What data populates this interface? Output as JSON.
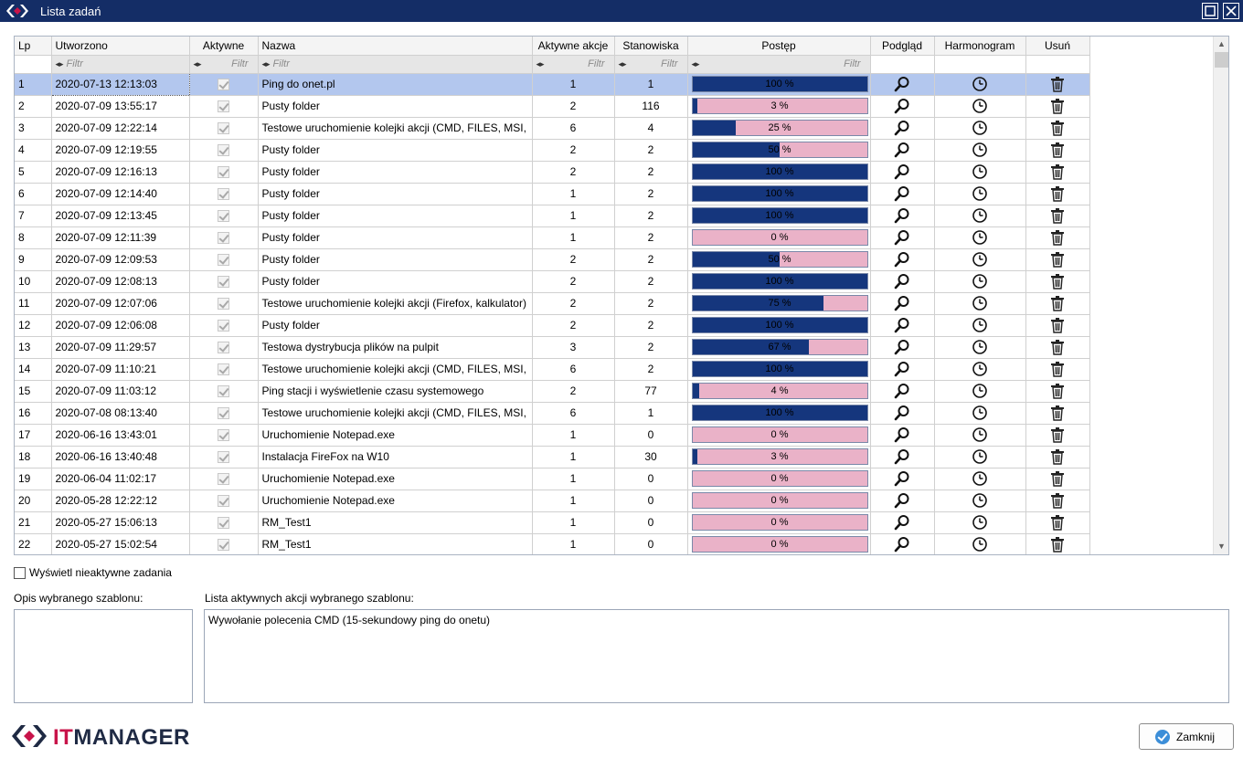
{
  "window": {
    "title": "Lista zadań"
  },
  "table": {
    "columns": {
      "lp": "Lp",
      "created": "Utworzono",
      "active": "Aktywne",
      "name": "Nazwa",
      "active_actions": "Aktywne akcje",
      "stations": "Stanowiska",
      "progress": "Postęp",
      "preview": "Podgląd",
      "schedule": "Harmonogram",
      "delete": "Usuń"
    },
    "filter_placeholder": "Filtr",
    "selected_row": 0,
    "rows": [
      {
        "lp": "1",
        "created": "2020-07-13 12:13:03",
        "active": true,
        "name": "Ping do onet.pl",
        "actions": "1",
        "stations": "1",
        "progress": 100,
        "progress_label": "100 %"
      },
      {
        "lp": "2",
        "created": "2020-07-09 13:55:17",
        "active": true,
        "name": "Pusty folder",
        "actions": "2",
        "stations": "116",
        "progress": 3,
        "progress_label": "3 %"
      },
      {
        "lp": "3",
        "created": "2020-07-09 12:22:14",
        "active": true,
        "name": "Testowe uruchomienie kolejki akcji (CMD, FILES, MSI,",
        "actions": "6",
        "stations": "4",
        "progress": 25,
        "progress_label": "25 %"
      },
      {
        "lp": "4",
        "created": "2020-07-09 12:19:55",
        "active": true,
        "name": "Pusty folder",
        "actions": "2",
        "stations": "2",
        "progress": 50,
        "progress_label": "50 %"
      },
      {
        "lp": "5",
        "created": "2020-07-09 12:16:13",
        "active": true,
        "name": "Pusty folder",
        "actions": "2",
        "stations": "2",
        "progress": 100,
        "progress_label": "100 %"
      },
      {
        "lp": "6",
        "created": "2020-07-09 12:14:40",
        "active": true,
        "name": "Pusty folder",
        "actions": "1",
        "stations": "2",
        "progress": 100,
        "progress_label": "100 %"
      },
      {
        "lp": "7",
        "created": "2020-07-09 12:13:45",
        "active": true,
        "name": "Pusty folder",
        "actions": "1",
        "stations": "2",
        "progress": 100,
        "progress_label": "100 %"
      },
      {
        "lp": "8",
        "created": "2020-07-09 12:11:39",
        "active": true,
        "name": "Pusty folder",
        "actions": "1",
        "stations": "2",
        "progress": 0,
        "progress_label": "0 %"
      },
      {
        "lp": "9",
        "created": "2020-07-09 12:09:53",
        "active": true,
        "name": "Pusty folder",
        "actions": "2",
        "stations": "2",
        "progress": 50,
        "progress_label": "50 %"
      },
      {
        "lp": "10",
        "created": "2020-07-09 12:08:13",
        "active": true,
        "name": "Pusty folder",
        "actions": "2",
        "stations": "2",
        "progress": 100,
        "progress_label": "100 %"
      },
      {
        "lp": "11",
        "created": "2020-07-09 12:07:06",
        "active": true,
        "name": "Testowe uruchomienie kolejki akcji (Firefox, kalkulator)",
        "actions": "2",
        "stations": "2",
        "progress": 75,
        "progress_label": "75 %"
      },
      {
        "lp": "12",
        "created": "2020-07-09 12:06:08",
        "active": true,
        "name": "Pusty folder",
        "actions": "2",
        "stations": "2",
        "progress": 100,
        "progress_label": "100 %"
      },
      {
        "lp": "13",
        "created": "2020-07-09 11:29:57",
        "active": true,
        "name": "Testowa dystrybucja plików na pulpit",
        "actions": "3",
        "stations": "2",
        "progress": 67,
        "progress_label": "67 %"
      },
      {
        "lp": "14",
        "created": "2020-07-09 11:10:21",
        "active": true,
        "name": "Testowe uruchomienie kolejki akcji (CMD, FILES, MSI,",
        "actions": "6",
        "stations": "2",
        "progress": 100,
        "progress_label": "100 %"
      },
      {
        "lp": "15",
        "created": "2020-07-09 11:03:12",
        "active": true,
        "name": "Ping stacji i wyświetlenie czasu systemowego",
        "actions": "2",
        "stations": "77",
        "progress": 4,
        "progress_label": "4 %"
      },
      {
        "lp": "16",
        "created": "2020-07-08 08:13:40",
        "active": true,
        "name": "Testowe uruchomienie kolejki akcji (CMD, FILES, MSI,",
        "actions": "6",
        "stations": "1",
        "progress": 100,
        "progress_label": "100 %"
      },
      {
        "lp": "17",
        "created": "2020-06-16 13:43:01",
        "active": true,
        "name": "Uruchomienie Notepad.exe",
        "actions": "1",
        "stations": "0",
        "progress": 0,
        "progress_label": "0 %"
      },
      {
        "lp": "18",
        "created": "2020-06-16 13:40:48",
        "active": true,
        "name": "Instalacja FireFox na W10",
        "actions": "1",
        "stations": "30",
        "progress": 3,
        "progress_label": "3 %"
      },
      {
        "lp": "19",
        "created": "2020-06-04 11:02:17",
        "active": true,
        "name": "Uruchomienie Notepad.exe",
        "actions": "1",
        "stations": "0",
        "progress": 0,
        "progress_label": "0 %"
      },
      {
        "lp": "20",
        "created": "2020-05-28 12:22:12",
        "active": true,
        "name": "Uruchomienie Notepad.exe",
        "actions": "1",
        "stations": "0",
        "progress": 0,
        "progress_label": "0 %"
      },
      {
        "lp": "21",
        "created": "2020-05-27 15:06:13",
        "active": true,
        "name": "RM_Test1",
        "actions": "1",
        "stations": "0",
        "progress": 0,
        "progress_label": "0 %"
      },
      {
        "lp": "22",
        "created": "2020-05-27 15:02:54",
        "active": true,
        "name": "RM_Test1",
        "actions": "1",
        "stations": "0",
        "progress": 0,
        "progress_label": "0 %"
      }
    ]
  },
  "show_inactive": {
    "label": "Wyświetl nieaktywne zadania",
    "checked": false
  },
  "description": {
    "label": "Opis wybranego szablonu:",
    "value": ""
  },
  "actions_list": {
    "label": "Lista aktywnych akcji wybranego szablonu:",
    "value": "Wywołanie polecenia CMD (15-sekundowy ping do onetu)"
  },
  "brand": {
    "name_part1": "IT",
    "name_part2": "MANAGER"
  },
  "close_button": {
    "label": "Zamknij"
  },
  "icons": {
    "preview": "magnifier-icon",
    "schedule": "clock-icon",
    "delete": "trash-icon"
  },
  "colors": {
    "titlebar": "#142d66",
    "progress_fill": "#15367d",
    "progress_bg": "#eab2c8",
    "selected_row": "#b3c7ee",
    "brand_accent": "#c8144a"
  }
}
